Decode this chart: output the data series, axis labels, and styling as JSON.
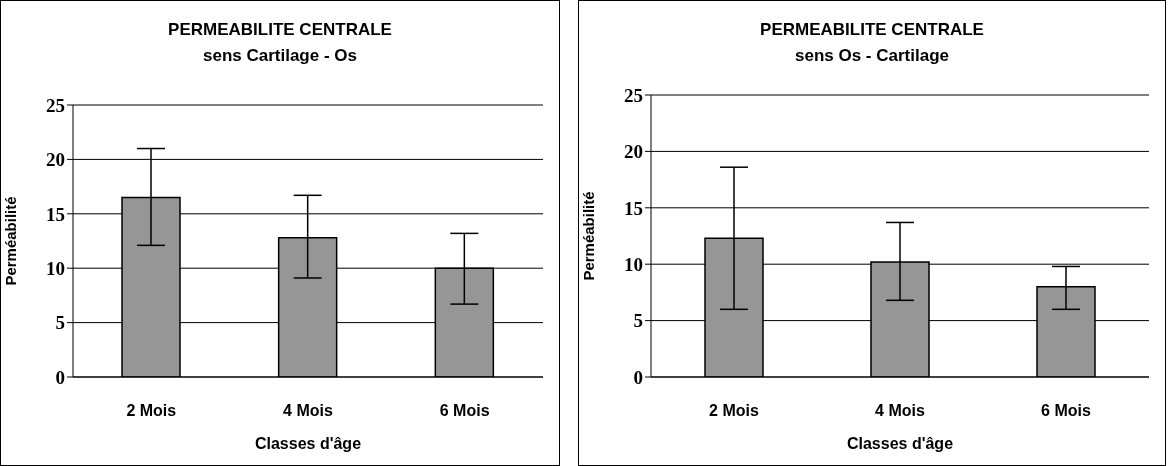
{
  "chart_data": [
    {
      "type": "bar",
      "title": "PERMEABILITE CENTRALE\nsens Cartilage - Os",
      "xlabel": "Classes d'âge",
      "ylabel": "Perméabilité",
      "categories": [
        "2 Mois",
        "4 Mois",
        "6 Mois"
      ],
      "values": [
        16.5,
        12.8,
        10.0
      ],
      "errors": [
        [
          12.1,
          21.0
        ],
        [
          9.1,
          16.7
        ],
        [
          6.7,
          13.2
        ]
      ],
      "color": "#969696",
      "ylim": [
        0,
        25
      ],
      "yticks": [
        0,
        5,
        10,
        15,
        20,
        25
      ],
      "grid": "y",
      "legend": false
    },
    {
      "type": "bar",
      "title": "PERMEABILITE CENTRALE\nsens Os - Cartilage",
      "xlabel": "Classes d'âge",
      "ylabel": "Perméabilité",
      "categories": [
        "2 Mois",
        "4 Mois",
        "6 Mois"
      ],
      "values": [
        12.3,
        10.2,
        8.0
      ],
      "errors": [
        [
          6.0,
          18.6
        ],
        [
          6.8,
          13.7
        ],
        [
          6.0,
          9.8
        ]
      ],
      "color": "#969696",
      "ylim": [
        0,
        25
      ],
      "yticks": [
        0,
        5,
        10,
        15,
        20,
        25
      ],
      "grid": "y",
      "legend": false
    }
  ]
}
